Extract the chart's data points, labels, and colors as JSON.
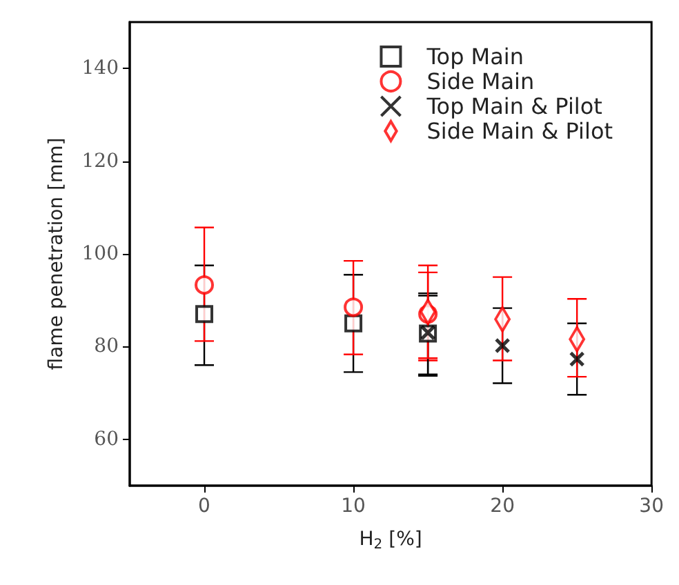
{
  "chart_data": {
    "type": "scatter",
    "xlabel": "H$_{2}$ [%]",
    "ylabel": "flame penetration [mm]",
    "xlim": [
      -5,
      30
    ],
    "xticks": [
      0,
      10,
      20,
      30
    ],
    "ylim": [
      50,
      150
    ],
    "yticks": [
      60,
      80,
      100,
      120,
      140
    ],
    "grid": false,
    "legend": "top right",
    "series": [
      {
        "name": "Top Main",
        "color": "#000000",
        "marker": "square",
        "x": [
          0,
          10,
          15
        ],
        "values": [
          87,
          85,
          82.8
        ],
        "errors": [
          [
            76,
            97.5
          ],
          [
            74.5,
            95.5
          ],
          [
            74,
            91
          ]
        ]
      },
      {
        "name": "Side Main",
        "color": "#ff0000",
        "marker": "circle",
        "x": [
          0,
          10,
          15
        ],
        "values": [
          93.3,
          88.5,
          87
        ],
        "errors": [
          [
            81.2,
            105.7
          ],
          [
            78.3,
            98.5
          ],
          [
            77,
            97.5
          ]
        ]
      },
      {
        "name": "Top Main & Pilot",
        "color": "#000000",
        "marker": "cross",
        "x": [
          15,
          20,
          25
        ],
        "values": [
          83,
          80.2,
          77.3
        ],
        "errors": [
          [
            73.7,
            91.5
          ],
          [
            72.1,
            88.3
          ],
          [
            69.6,
            85
          ]
        ]
      },
      {
        "name": "Side Main & Pilot",
        "color": "#ff0000",
        "marker": "diamond",
        "x": [
          15,
          20,
          25
        ],
        "values": [
          87.5,
          85.9,
          81.6
        ],
        "errors": [
          [
            77.5,
            96
          ],
          [
            77,
            95
          ],
          [
            73.5,
            90.3
          ]
        ]
      }
    ]
  }
}
